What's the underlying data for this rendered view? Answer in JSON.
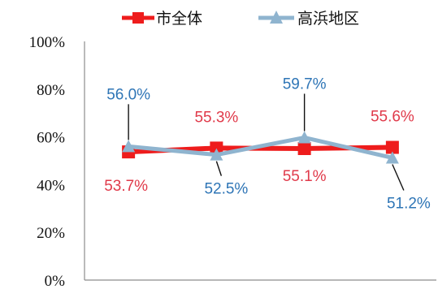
{
  "chart_data": {
    "type": "line",
    "categories": [
      "",
      "",
      "",
      ""
    ],
    "series": [
      {
        "name": "市全体",
        "values": [
          53.7,
          55.3,
          55.1,
          55.6
        ],
        "labels": [
          "53.7%",
          "55.3%",
          "55.1%",
          "55.6%"
        ],
        "color": "#ee1c1c",
        "label_color": "#e03a4a",
        "marker": "square"
      },
      {
        "name": "高浜地区",
        "values": [
          56.0,
          52.5,
          59.7,
          51.2
        ],
        "labels": [
          "56.0%",
          "52.5%",
          "59.7%",
          "51.2%"
        ],
        "color": "#8fb4cf",
        "label_color": "#2e75b6",
        "marker": "triangle"
      }
    ],
    "ylim": [
      0,
      100
    ],
    "yticks": [
      "0%",
      "20%",
      "40%",
      "60%",
      "80%",
      "100%"
    ],
    "grid": false,
    "legend_position": "top"
  }
}
